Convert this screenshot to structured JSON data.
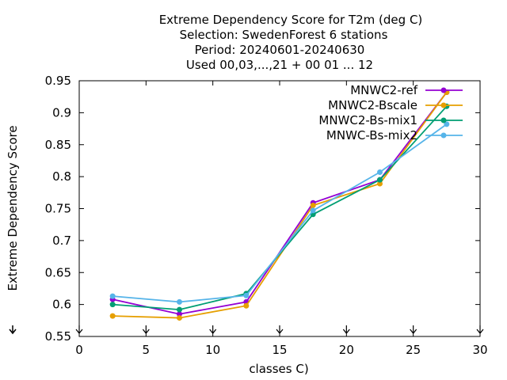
{
  "chart_data": {
    "type": "line",
    "title_lines": [
      "Extreme Dependency Score  for T2m (deg C)",
      "Selection: SwedenForest      6 stations",
      "Period: 20240601-20240630",
      "Used 00,03,...,21 + 00 01 ... 12"
    ],
    "xlabel": "classes C)",
    "ylabel": "Extreme Dependency Score",
    "xlim": [
      0,
      30
    ],
    "ylim": [
      0.55,
      0.95
    ],
    "xticks": [
      0,
      5,
      10,
      15,
      20,
      25,
      30
    ],
    "yticks": [
      0.55,
      0.6,
      0.65,
      0.7,
      0.75,
      0.8,
      0.85,
      0.9,
      0.95
    ],
    "xtick_labels": [
      "0",
      "5",
      "10",
      "15",
      "20",
      "25",
      "30"
    ],
    "ytick_labels": [
      "0.55",
      "0.6",
      "0.65",
      "0.7",
      "0.75",
      "0.8",
      "0.85",
      "0.9",
      "0.95"
    ],
    "grid": false,
    "legend_position": "top-right",
    "x": [
      2.5,
      7.5,
      12.5,
      17.5,
      22.5,
      27.5
    ],
    "series": [
      {
        "name": "MNWC2-ref",
        "color": "#9400d3",
        "values": [
          0.608,
          0.585,
          0.604,
          0.759,
          0.795,
          0.932
        ]
      },
      {
        "name": "MNWC2-Bscale",
        "color": "#e69f00",
        "values": [
          0.582,
          0.579,
          0.598,
          0.755,
          0.789,
          0.932
        ]
      },
      {
        "name": "MNWC2-Bs-mix1",
        "color": "#009e73",
        "values": [
          0.6,
          0.592,
          0.617,
          0.741,
          0.795,
          0.91
        ]
      },
      {
        "name": "MNWC-Bs-mix2",
        "color": "#56b4e9",
        "values": [
          0.613,
          0.604,
          0.614,
          0.747,
          0.807,
          0.882
        ]
      }
    ]
  }
}
